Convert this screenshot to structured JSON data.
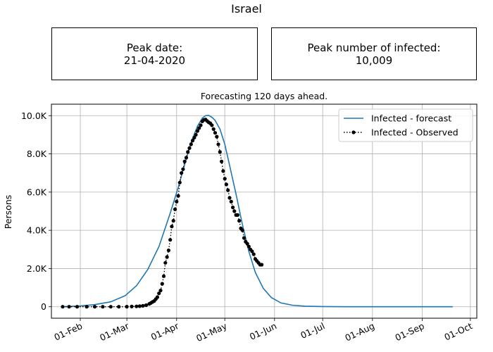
{
  "figure": {
    "title": "Israel",
    "peak_date_label": "Peak date:",
    "peak_date_value": "21-04-2020",
    "peak_infected_label": "Peak number of infected:",
    "peak_infected_value": "10,009"
  },
  "chart_data": {
    "type": "line",
    "title": "Forecasting 120 days ahead.",
    "xlabel": "",
    "ylabel": "Persons",
    "x_axis_type": "date",
    "xlim": [
      "2020-01-14",
      "2020-10-05"
    ],
    "ylim": [
      -600,
      10600
    ],
    "x_ticks": [
      {
        "date": "2020-02-01",
        "label": "01-Feb"
      },
      {
        "date": "2020-03-01",
        "label": "01-Mar"
      },
      {
        "date": "2020-04-01",
        "label": "01-Apr"
      },
      {
        "date": "2020-05-01",
        "label": "01-May"
      },
      {
        "date": "2020-06-01",
        "label": "01-Jun"
      },
      {
        "date": "2020-07-01",
        "label": "01-Jul"
      },
      {
        "date": "2020-08-01",
        "label": "01-Aug"
      },
      {
        "date": "2020-09-01",
        "label": "01-Sep"
      },
      {
        "date": "2020-10-01",
        "label": "01-Oct"
      }
    ],
    "y_ticks": [
      {
        "value": 0,
        "label": "0"
      },
      {
        "value": 2000,
        "label": "2.0K"
      },
      {
        "value": 4000,
        "label": "4.0K"
      },
      {
        "value": 6000,
        "label": "6.0K"
      },
      {
        "value": 8000,
        "label": "8.0K"
      },
      {
        "value": 10000,
        "label": "10.0K"
      }
    ],
    "grid": true,
    "legend_position": "top-right",
    "series": [
      {
        "name": "Infected - forecast",
        "style": "line",
        "color": "#1f77b4",
        "x": [
          "2020-01-21",
          "2020-02-01",
          "2020-02-10",
          "2020-02-20",
          "2020-02-29",
          "2020-03-07",
          "2020-03-14",
          "2020-03-21",
          "2020-03-28",
          "2020-04-02",
          "2020-04-06",
          "2020-04-10",
          "2020-04-14",
          "2020-04-17",
          "2020-04-19",
          "2020-04-21",
          "2020-04-23",
          "2020-04-25",
          "2020-04-28",
          "2020-05-01",
          "2020-05-04",
          "2020-05-08",
          "2020-05-12",
          "2020-05-16",
          "2020-05-20",
          "2020-05-25",
          "2020-05-30",
          "2020-06-05",
          "2020-06-12",
          "2020-06-20",
          "2020-07-01",
          "2020-07-15",
          "2020-08-01",
          "2020-09-01",
          "2020-09-20"
        ],
        "y": [
          0,
          40,
          110,
          260,
          580,
          1100,
          1950,
          3150,
          4900,
          6250,
          7450,
          8600,
          9450,
          9870,
          10000,
          10009,
          9920,
          9750,
          9300,
          8500,
          7400,
          5900,
          4300,
          2900,
          1800,
          960,
          480,
          200,
          80,
          30,
          10,
          0,
          0,
          0,
          0
        ]
      },
      {
        "name": "Infected - Observed",
        "style": "dotted-markers",
        "color": "#000000",
        "x": [
          "2020-01-21",
          "2020-01-25",
          "2020-01-30",
          "2020-02-05",
          "2020-02-10",
          "2020-02-15",
          "2020-02-20",
          "2020-02-25",
          "2020-03-01",
          "2020-03-04",
          "2020-03-07",
          "2020-03-09",
          "2020-03-11",
          "2020-03-13",
          "2020-03-15",
          "2020-03-16",
          "2020-03-17",
          "2020-03-18",
          "2020-03-19",
          "2020-03-20",
          "2020-03-21",
          "2020-03-22",
          "2020-03-23",
          "2020-03-24",
          "2020-03-25",
          "2020-03-26",
          "2020-03-27",
          "2020-03-28",
          "2020-03-29",
          "2020-03-30",
          "2020-03-31",
          "2020-04-01",
          "2020-04-02",
          "2020-04-03",
          "2020-04-04",
          "2020-04-05",
          "2020-04-06",
          "2020-04-07",
          "2020-04-08",
          "2020-04-09",
          "2020-04-10",
          "2020-04-11",
          "2020-04-12",
          "2020-04-13",
          "2020-04-14",
          "2020-04-15",
          "2020-04-16",
          "2020-04-17",
          "2020-04-18",
          "2020-04-19",
          "2020-04-20",
          "2020-04-21",
          "2020-04-22",
          "2020-04-23",
          "2020-04-24",
          "2020-04-25",
          "2020-04-26",
          "2020-04-27",
          "2020-04-28",
          "2020-04-29",
          "2020-04-30",
          "2020-05-01",
          "2020-05-02",
          "2020-05-03",
          "2020-05-04",
          "2020-05-05",
          "2020-05-06",
          "2020-05-07",
          "2020-05-08",
          "2020-05-09",
          "2020-05-10",
          "2020-05-11",
          "2020-05-12",
          "2020-05-13",
          "2020-05-14",
          "2020-05-15",
          "2020-05-16",
          "2020-05-17",
          "2020-05-18",
          "2020-05-19",
          "2020-05-20",
          "2020-05-21",
          "2020-05-22",
          "2020-05-23",
          "2020-05-24"
        ],
        "y": [
          0,
          0,
          0,
          0,
          0,
          0,
          0,
          0,
          3,
          10,
          20,
          30,
          50,
          80,
          150,
          200,
          250,
          300,
          400,
          500,
          700,
          850,
          1200,
          1600,
          2300,
          2600,
          2950,
          3500,
          4200,
          4500,
          5100,
          5500,
          5800,
          6500,
          7000,
          7200,
          7600,
          7800,
          8100,
          8300,
          8500,
          8700,
          8850,
          9000,
          9200,
          9350,
          9500,
          9700,
          9780,
          9800,
          9720,
          9650,
          9600,
          9500,
          9300,
          9100,
          8900,
          8500,
          8100,
          7600,
          7100,
          6700,
          6400,
          6100,
          5700,
          5500,
          5200,
          5000,
          4800,
          4800,
          4500,
          4100,
          4000,
          3600,
          3400,
          3300,
          3150,
          3000,
          2900,
          2750,
          2500,
          2400,
          2300,
          2200,
          2200
        ]
      }
    ]
  }
}
